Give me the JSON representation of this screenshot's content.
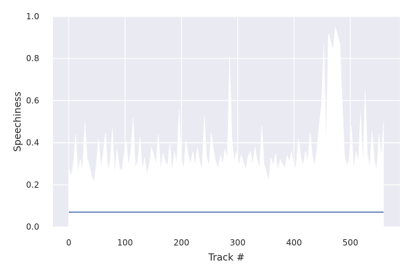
{
  "chart_data": {
    "type": "area",
    "title": "",
    "xlabel": "Track #",
    "ylabel": "Speechiness",
    "xlim": [
      -28,
      588
    ],
    "ylim": [
      0.0,
      1.0
    ],
    "x_ticks": [
      0,
      100,
      200,
      300,
      400,
      500
    ],
    "y_ticks": [
      0.0,
      0.2,
      0.4,
      0.6,
      0.8,
      1.0
    ],
    "x_tick_labels": [
      "0",
      "100",
      "200",
      "300",
      "400",
      "500"
    ],
    "y_tick_labels": [
      "0.0",
      "0.2",
      "0.4",
      "0.6",
      "0.8",
      "1.0"
    ],
    "grid": true,
    "track_count": 560,
    "series": [
      {
        "values": [
          0.28,
          0.24,
          0.3,
          0.44,
          0.26,
          0.32,
          0.27,
          0.5,
          0.33,
          0.29,
          0.24,
          0.21,
          0.3,
          0.42,
          0.28,
          0.35,
          0.45,
          0.27,
          0.31,
          0.47,
          0.25,
          0.37,
          0.29,
          0.26,
          0.34,
          0.41,
          0.29,
          0.36,
          0.52,
          0.28,
          0.31,
          0.43,
          0.27,
          0.33,
          0.25,
          0.29,
          0.38,
          0.34,
          0.3,
          0.44,
          0.27,
          0.35,
          0.31,
          0.29,
          0.4,
          0.26,
          0.36,
          0.3,
          0.56,
          0.32,
          0.28,
          0.41,
          0.34,
          0.3,
          0.36,
          0.29,
          0.38,
          0.31,
          0.27,
          0.53,
          0.33,
          0.29,
          0.45,
          0.36,
          0.31,
          0.28,
          0.34,
          0.3,
          0.37,
          0.32,
          0.81,
          0.42,
          0.31,
          0.36,
          0.29,
          0.34,
          0.31,
          0.27,
          0.33,
          0.36,
          0.29,
          0.38,
          0.32,
          0.28,
          0.48,
          0.3,
          0.26,
          0.22,
          0.33,
          0.29,
          0.35,
          0.27,
          0.32,
          0.3,
          0.28,
          0.34,
          0.31,
          0.36,
          0.27,
          0.3,
          0.42,
          0.33,
          0.29,
          0.36,
          0.31,
          0.45,
          0.34,
          0.29,
          0.37,
          0.49,
          0.58,
          0.87,
          0.38,
          0.92,
          0.88,
          0.84,
          0.95,
          0.91,
          0.87,
          0.6,
          0.34,
          0.29,
          0.32,
          0.48,
          0.27,
          0.36,
          0.31,
          0.54,
          0.29,
          0.65,
          0.34,
          0.28,
          0.46,
          0.31,
          0.27,
          0.44,
          0.33,
          0.5
        ],
        "color": "#4c72b0",
        "baseline_value": 0.07
      }
    ],
    "fill_color": "#ffffff",
    "colors": {
      "plot_background": "#eaeaf2",
      "grid": "#ffffff",
      "line": "#4c72b0",
      "text": "#262626"
    }
  }
}
